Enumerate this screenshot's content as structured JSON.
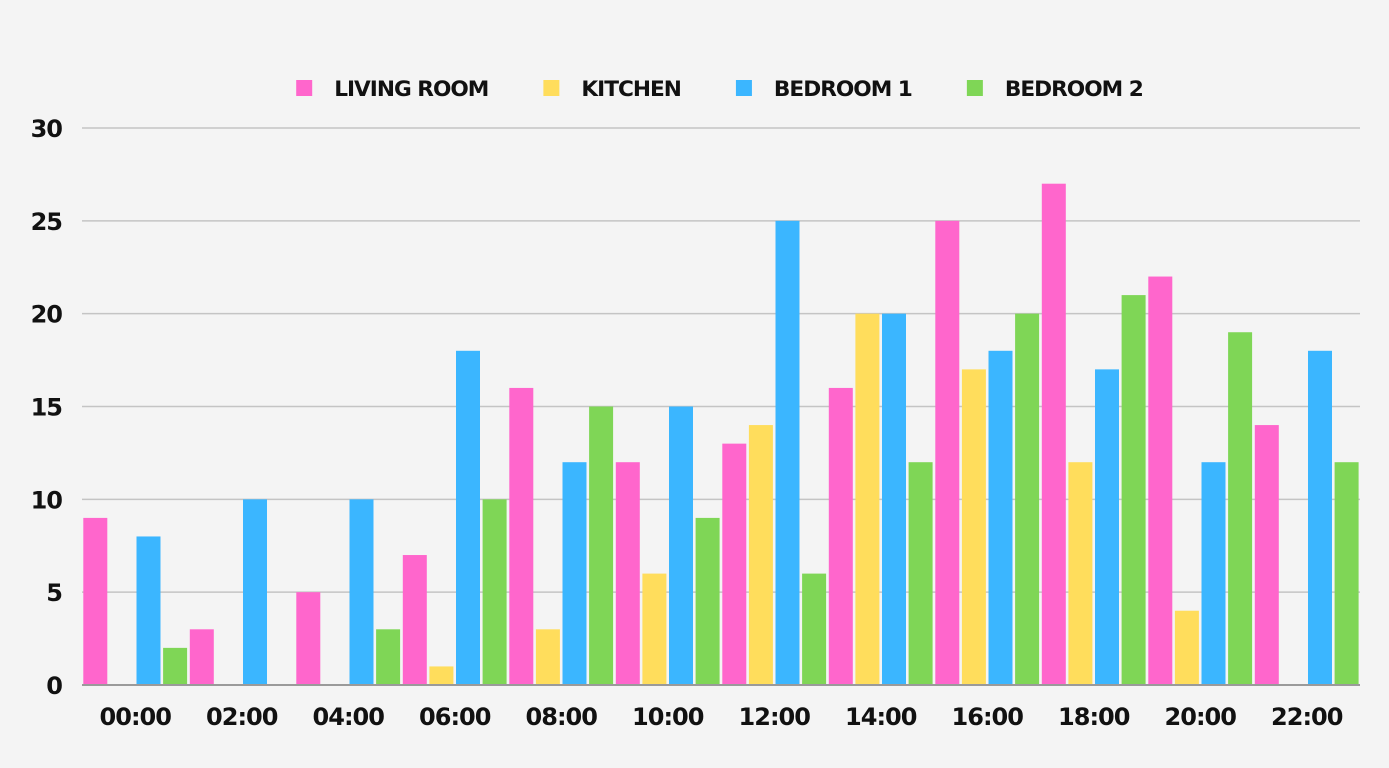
{
  "chart_data": {
    "type": "bar",
    "title": "",
    "xlabel": "",
    "ylabel": "",
    "categories": [
      "00:00",
      "02:00",
      "04:00",
      "06:00",
      "08:00",
      "10:00",
      "12:00",
      "14:00",
      "16:00",
      "18:00",
      "20:00",
      "22:00"
    ],
    "series": [
      {
        "name": "LIVING ROOM",
        "color": "#ff66cc",
        "values": [
          9,
          3,
          5,
          7,
          16,
          12,
          13,
          16,
          25,
          27,
          22,
          14
        ]
      },
      {
        "name": "KITCHEN",
        "color": "#ffdd5c",
        "values": [
          0,
          0,
          0,
          1,
          3,
          6,
          14,
          20,
          17,
          12,
          4,
          0
        ]
      },
      {
        "name": "BEDROOM 1",
        "color": "#3bb6ff",
        "values": [
          8,
          10,
          10,
          18,
          12,
          15,
          25,
          20,
          18,
          17,
          12,
          18
        ]
      },
      {
        "name": "BEDROOM 2",
        "color": "#7fd656",
        "values": [
          2,
          0,
          3,
          10,
          15,
          9,
          6,
          12,
          20,
          21,
          19,
          12
        ]
      }
    ],
    "ylim": [
      0,
      30
    ],
    "yticks": [
      0,
      5,
      10,
      15,
      20,
      25,
      30
    ],
    "grid": true,
    "legend_position": "top-center"
  }
}
